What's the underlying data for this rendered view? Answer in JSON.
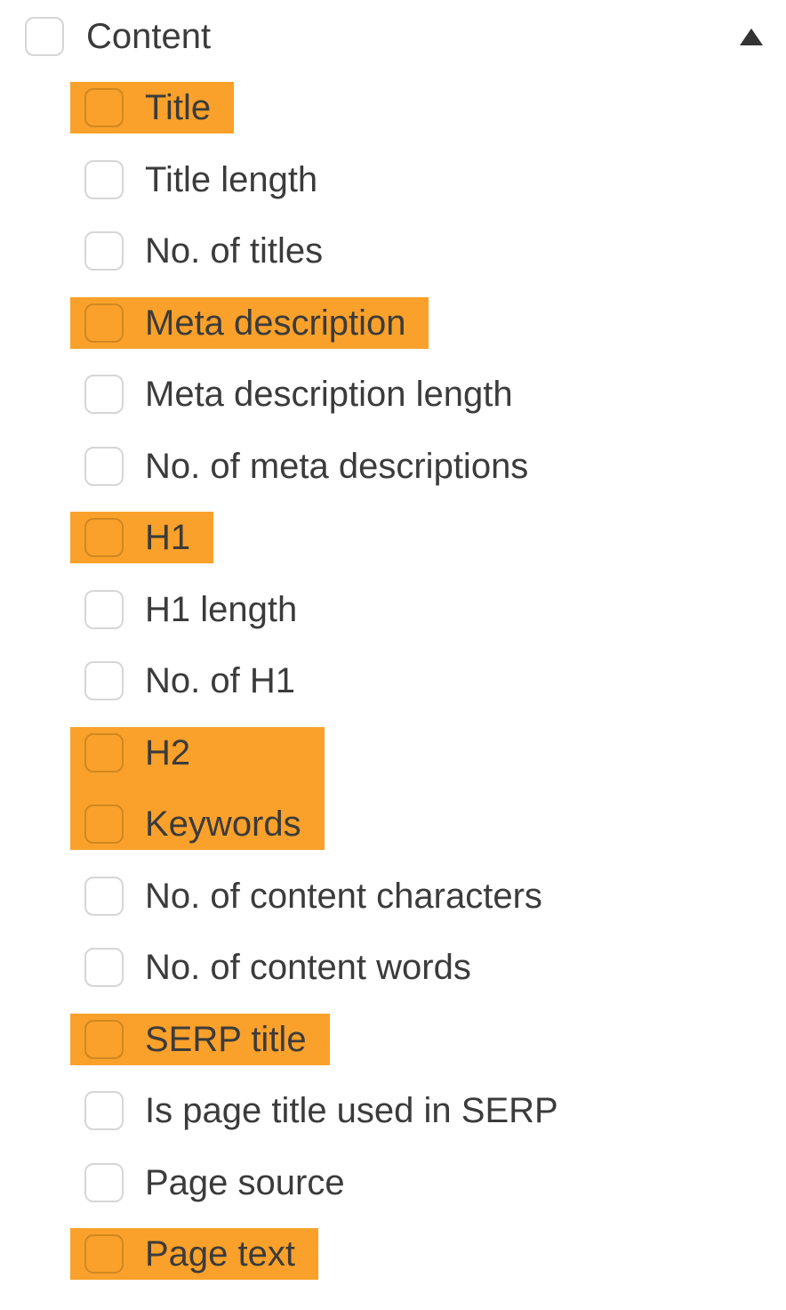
{
  "colors": {
    "highlight": "#F9A12B",
    "text": "#3B3B3B",
    "checkbox_border": "#D6D6D6",
    "checkbox_border_on_highlight": "#D2881F",
    "arrow": "#333333",
    "background": "#FFFFFF"
  },
  "section": {
    "label": "Content",
    "checked": false,
    "expanded": true,
    "collapse_icon": "caret-up-icon"
  },
  "items": [
    {
      "label": "Title",
      "checked": false,
      "highlighted": true
    },
    {
      "label": "Title length",
      "checked": false,
      "highlighted": false
    },
    {
      "label": "No. of titles",
      "checked": false,
      "highlighted": false
    },
    {
      "label": "Meta description",
      "checked": false,
      "highlighted": true
    },
    {
      "label": "Meta description length",
      "checked": false,
      "highlighted": false
    },
    {
      "label": "No. of meta descriptions",
      "checked": false,
      "highlighted": false
    },
    {
      "label": "H1",
      "checked": false,
      "highlighted": true
    },
    {
      "label": "H1 length",
      "checked": false,
      "highlighted": false
    },
    {
      "label": "No. of H1",
      "checked": false,
      "highlighted": false
    },
    {
      "label": "H2",
      "checked": false,
      "highlighted": true
    },
    {
      "label": "Keywords",
      "checked": false,
      "highlighted": true
    },
    {
      "label": "No. of content characters",
      "checked": false,
      "highlighted": false
    },
    {
      "label": "No. of content words",
      "checked": false,
      "highlighted": false
    },
    {
      "label": "SERP title",
      "checked": false,
      "highlighted": true
    },
    {
      "label": "Is page title used in SERP",
      "checked": false,
      "highlighted": false
    },
    {
      "label": "Page source",
      "checked": false,
      "highlighted": false
    },
    {
      "label": "Page text",
      "checked": false,
      "highlighted": true
    }
  ]
}
